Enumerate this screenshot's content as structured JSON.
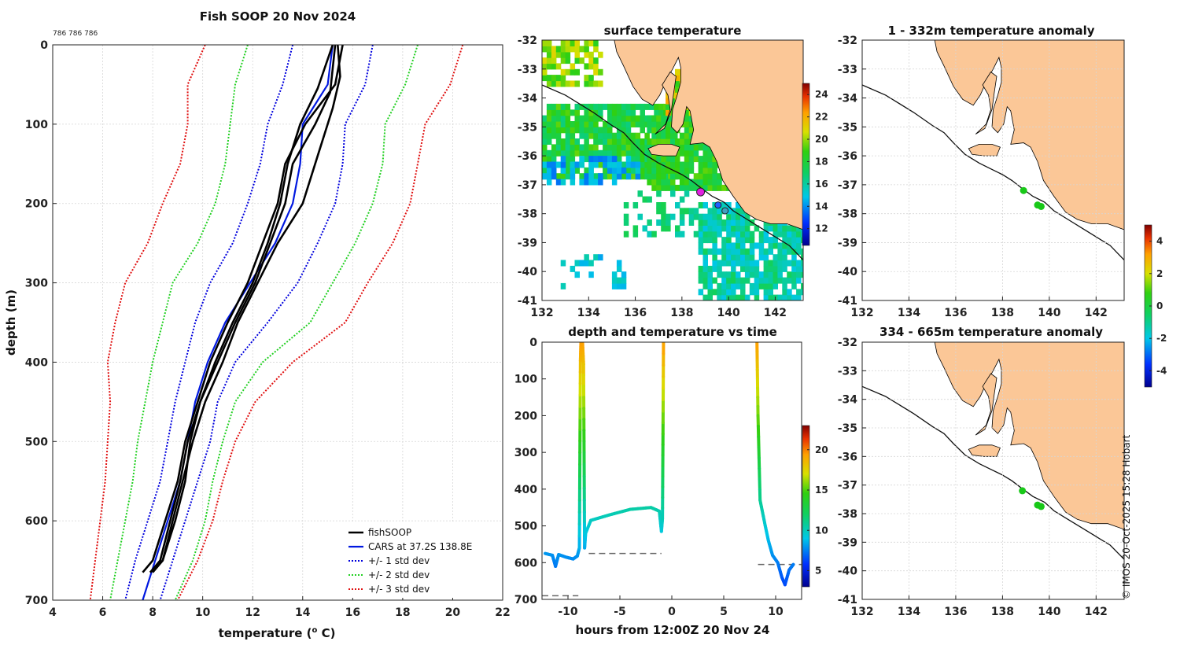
{
  "page": {
    "credit": "© IMOS 20-Oct-2025 15:28 Hobart",
    "small_label": "786 786 786"
  },
  "colors": {
    "fishsoop": "#000000",
    "cars": "#0018e0",
    "std1": "#0000dd",
    "std2": "#22d022",
    "std3": "#e01010",
    "land": "#fbc797",
    "coast": "#111111",
    "ref_dash": "#666666",
    "marker_pink": "#e020e0",
    "anomaly_dot": "#18c818"
  },
  "chart_data": [
    {
      "id": "profile",
      "type": "line",
      "title": "Fish SOOP 20 Nov 2024",
      "xlabel": "temperature (",
      "xlabel_sup": "o",
      "xlabel_end": " C)",
      "ylabel": "depth (m)",
      "xlim": [
        4,
        22
      ],
      "ylim": [
        0,
        700
      ],
      "xticks": [
        "4",
        "6",
        "8",
        "10",
        "12",
        "14",
        "16",
        "18",
        "20",
        "22"
      ],
      "yticks": [
        "0",
        "100",
        "200",
        "300",
        "400",
        "500",
        "600",
        "700"
      ],
      "legend": [
        "fishSOOP",
        "CARS at 37.2S 138.8E",
        "+/- 1 std dev",
        "+/- 2 std dev",
        "+/- 3 std dev"
      ],
      "legend_loc": "bottom-right",
      "depths": [
        0,
        50,
        100,
        150,
        200,
        250,
        300,
        350,
        400,
        450,
        500,
        550,
        600,
        650,
        700
      ],
      "cars": [
        15.2,
        15.0,
        14.0,
        13.9,
        13.6,
        12.9,
        11.9,
        10.9,
        10.2,
        9.7,
        9.4,
        9.1,
        8.6,
        8.1,
        7.6
      ],
      "std1_lo": [
        13.6,
        13.2,
        12.6,
        12.3,
        11.8,
        11.2,
        10.3,
        9.7,
        9.3,
        8.9,
        8.6,
        8.3,
        7.8,
        7.3,
        6.9
      ],
      "std1_hi": [
        16.8,
        16.5,
        15.7,
        15.6,
        15.3,
        14.6,
        13.8,
        12.6,
        11.3,
        10.6,
        10.3,
        9.8,
        9.3,
        8.8,
        8.3
      ],
      "std2_lo": [
        11.8,
        11.3,
        11.1,
        10.9,
        10.5,
        9.8,
        8.8,
        8.4,
        8.0,
        7.7,
        7.4,
        7.2,
        6.9,
        6.6,
        6.3
      ],
      "std2_hi": [
        18.6,
        18.1,
        17.3,
        17.2,
        16.8,
        16.1,
        15.2,
        14.3,
        12.4,
        11.3,
        10.8,
        10.4,
        10.1,
        9.6,
        8.9
      ],
      "std3_lo": [
        10.1,
        9.4,
        9.4,
        9.1,
        8.4,
        7.8,
        6.9,
        6.5,
        6.2,
        6.3,
        6.2,
        6.1,
        5.9,
        5.7,
        5.5
      ],
      "std3_hi": [
        20.4,
        19.9,
        18.9,
        18.6,
        18.3,
        17.6,
        16.6,
        15.7,
        13.6,
        12.1,
        11.3,
        10.8,
        10.4,
        9.8,
        9.0
      ],
      "casts": [
        {
          "t": [
            15.3,
            15.1,
            14.5,
            13.6,
            13.3,
            12.7,
            12.1,
            11.3,
            10.6,
            9.9,
            9.4,
            9.1,
            8.7,
            8.3,
            7.9
          ],
          "d": [
            0,
            60,
            100,
            150,
            200,
            250,
            300,
            350,
            400,
            450,
            500,
            550,
            600,
            650,
            665
          ]
        },
        {
          "t": [
            15.6,
            15.3,
            14.1,
            13.3,
            13.0,
            12.4,
            11.8,
            11.0,
            10.3,
            9.8,
            9.3,
            9.0,
            8.5,
            8.0,
            7.6
          ],
          "d": [
            0,
            50,
            100,
            150,
            200,
            250,
            300,
            350,
            400,
            450,
            500,
            550,
            600,
            650,
            665
          ]
        },
        {
          "t": [
            15.4,
            15.5,
            15.2,
            14.6,
            14.0,
            13.0,
            12.2,
            11.4,
            10.8,
            10.1,
            9.6,
            9.2,
            8.8,
            8.4,
            8.0
          ],
          "d": [
            0,
            40,
            80,
            140,
            200,
            250,
            300,
            350,
            400,
            450,
            500,
            550,
            600,
            650,
            665
          ]
        },
        {
          "t": [
            15.2,
            14.6,
            13.9,
            13.4,
            13.1,
            12.6,
            12.0,
            11.2,
            10.5,
            9.9,
            9.5,
            9.3,
            8.9,
            8.4,
            7.9
          ],
          "d": [
            0,
            55,
            100,
            150,
            200,
            250,
            300,
            350,
            400,
            450,
            500,
            550,
            600,
            650,
            665
          ]
        }
      ]
    },
    {
      "id": "sst_map",
      "type": "heatmap",
      "title": "surface temperature",
      "xlim": [
        132,
        143.2
      ],
      "ylim": [
        -41,
        -32
      ],
      "xticks": [
        "132",
        "134",
        "136",
        "138",
        "140",
        "142"
      ],
      "yticks": [
        "-32",
        "-33",
        "-34",
        "-35",
        "-36",
        "-37",
        "-38",
        "-39",
        "-40",
        "-41"
      ],
      "colorbar_ticks": [
        "12",
        "14",
        "16",
        "18",
        "20",
        "22",
        "24"
      ],
      "colorbar_range": [
        10.5,
        25
      ]
    },
    {
      "id": "depth_time",
      "type": "line",
      "title": "depth and temperature vs time",
      "xlabel": "hours from 12:00Z 20 Nov 24",
      "xlim": [
        -12.5,
        12.5
      ],
      "ylim": [
        0,
        700
      ],
      "xticks": [
        "-10",
        "-5",
        "0",
        "5",
        "10"
      ],
      "yticks": [
        "0",
        "100",
        "200",
        "300",
        "400",
        "500",
        "600",
        "700"
      ],
      "colorbar_ticks": [
        "5",
        "10",
        "15",
        "20"
      ],
      "colorbar_range": [
        3,
        23
      ],
      "ref_lines": [
        {
          "x0": -12.5,
          "x1": -9.0,
          "depth": 690
        },
        {
          "x0": -8.0,
          "x1": -1.0,
          "depth": 575
        },
        {
          "x0": 8.3,
          "x1": 12.5,
          "depth": 605
        }
      ]
    },
    {
      "id": "anomaly_upper",
      "type": "scatter",
      "title": "1 - 332m temperature anomaly",
      "xlim": [
        132,
        143.2
      ],
      "ylim": [
        -41,
        -32
      ],
      "xticks": [
        "132",
        "134",
        "136",
        "138",
        "140",
        "142"
      ],
      "yticks": [
        "-32",
        "-33",
        "-34",
        "-35",
        "-36",
        "-37",
        "-38",
        "-39",
        "-40",
        "-41"
      ],
      "points": [
        {
          "lon": 138.9,
          "lat": -37.2,
          "v": 0.1
        },
        {
          "lon": 139.5,
          "lat": -37.7,
          "v": 0.1
        },
        {
          "lon": 139.65,
          "lat": -37.75,
          "v": 0.1
        }
      ]
    },
    {
      "id": "anomaly_lower",
      "type": "scatter",
      "title": "334 - 665m temperature anomaly",
      "xlim": [
        132,
        143.2
      ],
      "ylim": [
        -41,
        -32
      ],
      "xticks": [
        "132",
        "134",
        "136",
        "138",
        "140",
        "142"
      ],
      "yticks": [
        "-32",
        "-33",
        "-34",
        "-35",
        "-36",
        "-37",
        "-38",
        "-39",
        "-40",
        "-41"
      ],
      "points": [
        {
          "lon": 138.85,
          "lat": -37.2,
          "v": 0.1
        },
        {
          "lon": 139.5,
          "lat": -37.7,
          "v": 0.1
        },
        {
          "lon": 139.65,
          "lat": -37.75,
          "v": 0.1
        }
      ],
      "colorbar_ticks": [
        "-4",
        "-2",
        "0",
        "2",
        "4"
      ],
      "colorbar_range": [
        -5,
        5
      ]
    }
  ]
}
